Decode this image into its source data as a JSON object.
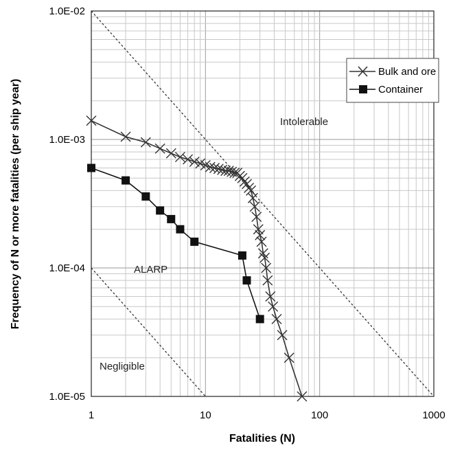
{
  "chart_data": {
    "type": "line",
    "title": "",
    "xlabel": "Fatalities (N)",
    "ylabel": "Frequency of N or more fatalities (per ship year)",
    "x_scale": "log",
    "y_scale": "log",
    "xlim": [
      1,
      1000
    ],
    "ylim": [
      1e-05,
      0.01
    ],
    "grid": true,
    "legend_position": "top-right",
    "x_tick_labels": [
      "1",
      "10",
      "100",
      "1000"
    ],
    "y_tick_labels": [
      "1.0E-05",
      "1.0E-04",
      "1.0E-03",
      "1.0E-02"
    ],
    "series": [
      {
        "name": "Bulk and ore",
        "marker": "x",
        "color": "#333333",
        "points": [
          [
            1,
            0.0014
          ],
          [
            2,
            0.00105
          ],
          [
            3,
            0.00095
          ],
          [
            4,
            0.00085
          ],
          [
            5,
            0.00078
          ],
          [
            6,
            0.00073
          ],
          [
            7,
            0.0007
          ],
          [
            8,
            0.00067
          ],
          [
            9,
            0.00065
          ],
          [
            10,
            0.00063
          ],
          [
            11,
            0.00061
          ],
          [
            12,
            0.0006
          ],
          [
            13,
            0.00059
          ],
          [
            14,
            0.00058
          ],
          [
            15,
            0.00057
          ],
          [
            16,
            0.00057
          ],
          [
            17,
            0.00056
          ],
          [
            18,
            0.00055
          ],
          [
            19,
            0.00055
          ],
          [
            20,
            0.00052
          ],
          [
            21,
            0.0005
          ],
          [
            22,
            0.00047
          ],
          [
            23,
            0.00045
          ],
          [
            24,
            0.00042
          ],
          [
            25,
            0.0004
          ],
          [
            26,
            0.00035
          ],
          [
            27,
            0.0003
          ],
          [
            28,
            0.00025
          ],
          [
            29,
            0.0002
          ],
          [
            30,
            0.00018
          ],
          [
            31,
            0.00016
          ],
          [
            32,
            0.00013
          ],
          [
            33,
            0.00012
          ],
          [
            34,
            0.0001
          ],
          [
            35,
            8e-05
          ],
          [
            37,
            6e-05
          ],
          [
            39,
            5e-05
          ],
          [
            42,
            4e-05
          ],
          [
            47,
            3e-05
          ],
          [
            54,
            2e-05
          ],
          [
            70,
            1e-05
          ]
        ]
      },
      {
        "name": "Container",
        "marker": "square",
        "color": "#111111",
        "points": [
          [
            1,
            0.0006
          ],
          [
            2,
            0.00048
          ],
          [
            3,
            0.00036
          ],
          [
            4,
            0.00028
          ],
          [
            5,
            0.00024
          ],
          [
            6,
            0.0002
          ],
          [
            8,
            0.00016
          ],
          [
            21,
            0.000125
          ],
          [
            23,
            8e-05
          ],
          [
            30,
            4e-05
          ]
        ]
      }
    ],
    "criteria_lines": [
      {
        "name": "upper",
        "x": [
          1,
          1000
        ],
        "y": [
          0.01,
          1e-05
        ]
      },
      {
        "name": "lower",
        "x": [
          1,
          10
        ],
        "y": [
          0.0001,
          1e-05
        ]
      }
    ],
    "regions": [
      "Intolerable",
      "ALARP",
      "Negligible"
    ]
  }
}
